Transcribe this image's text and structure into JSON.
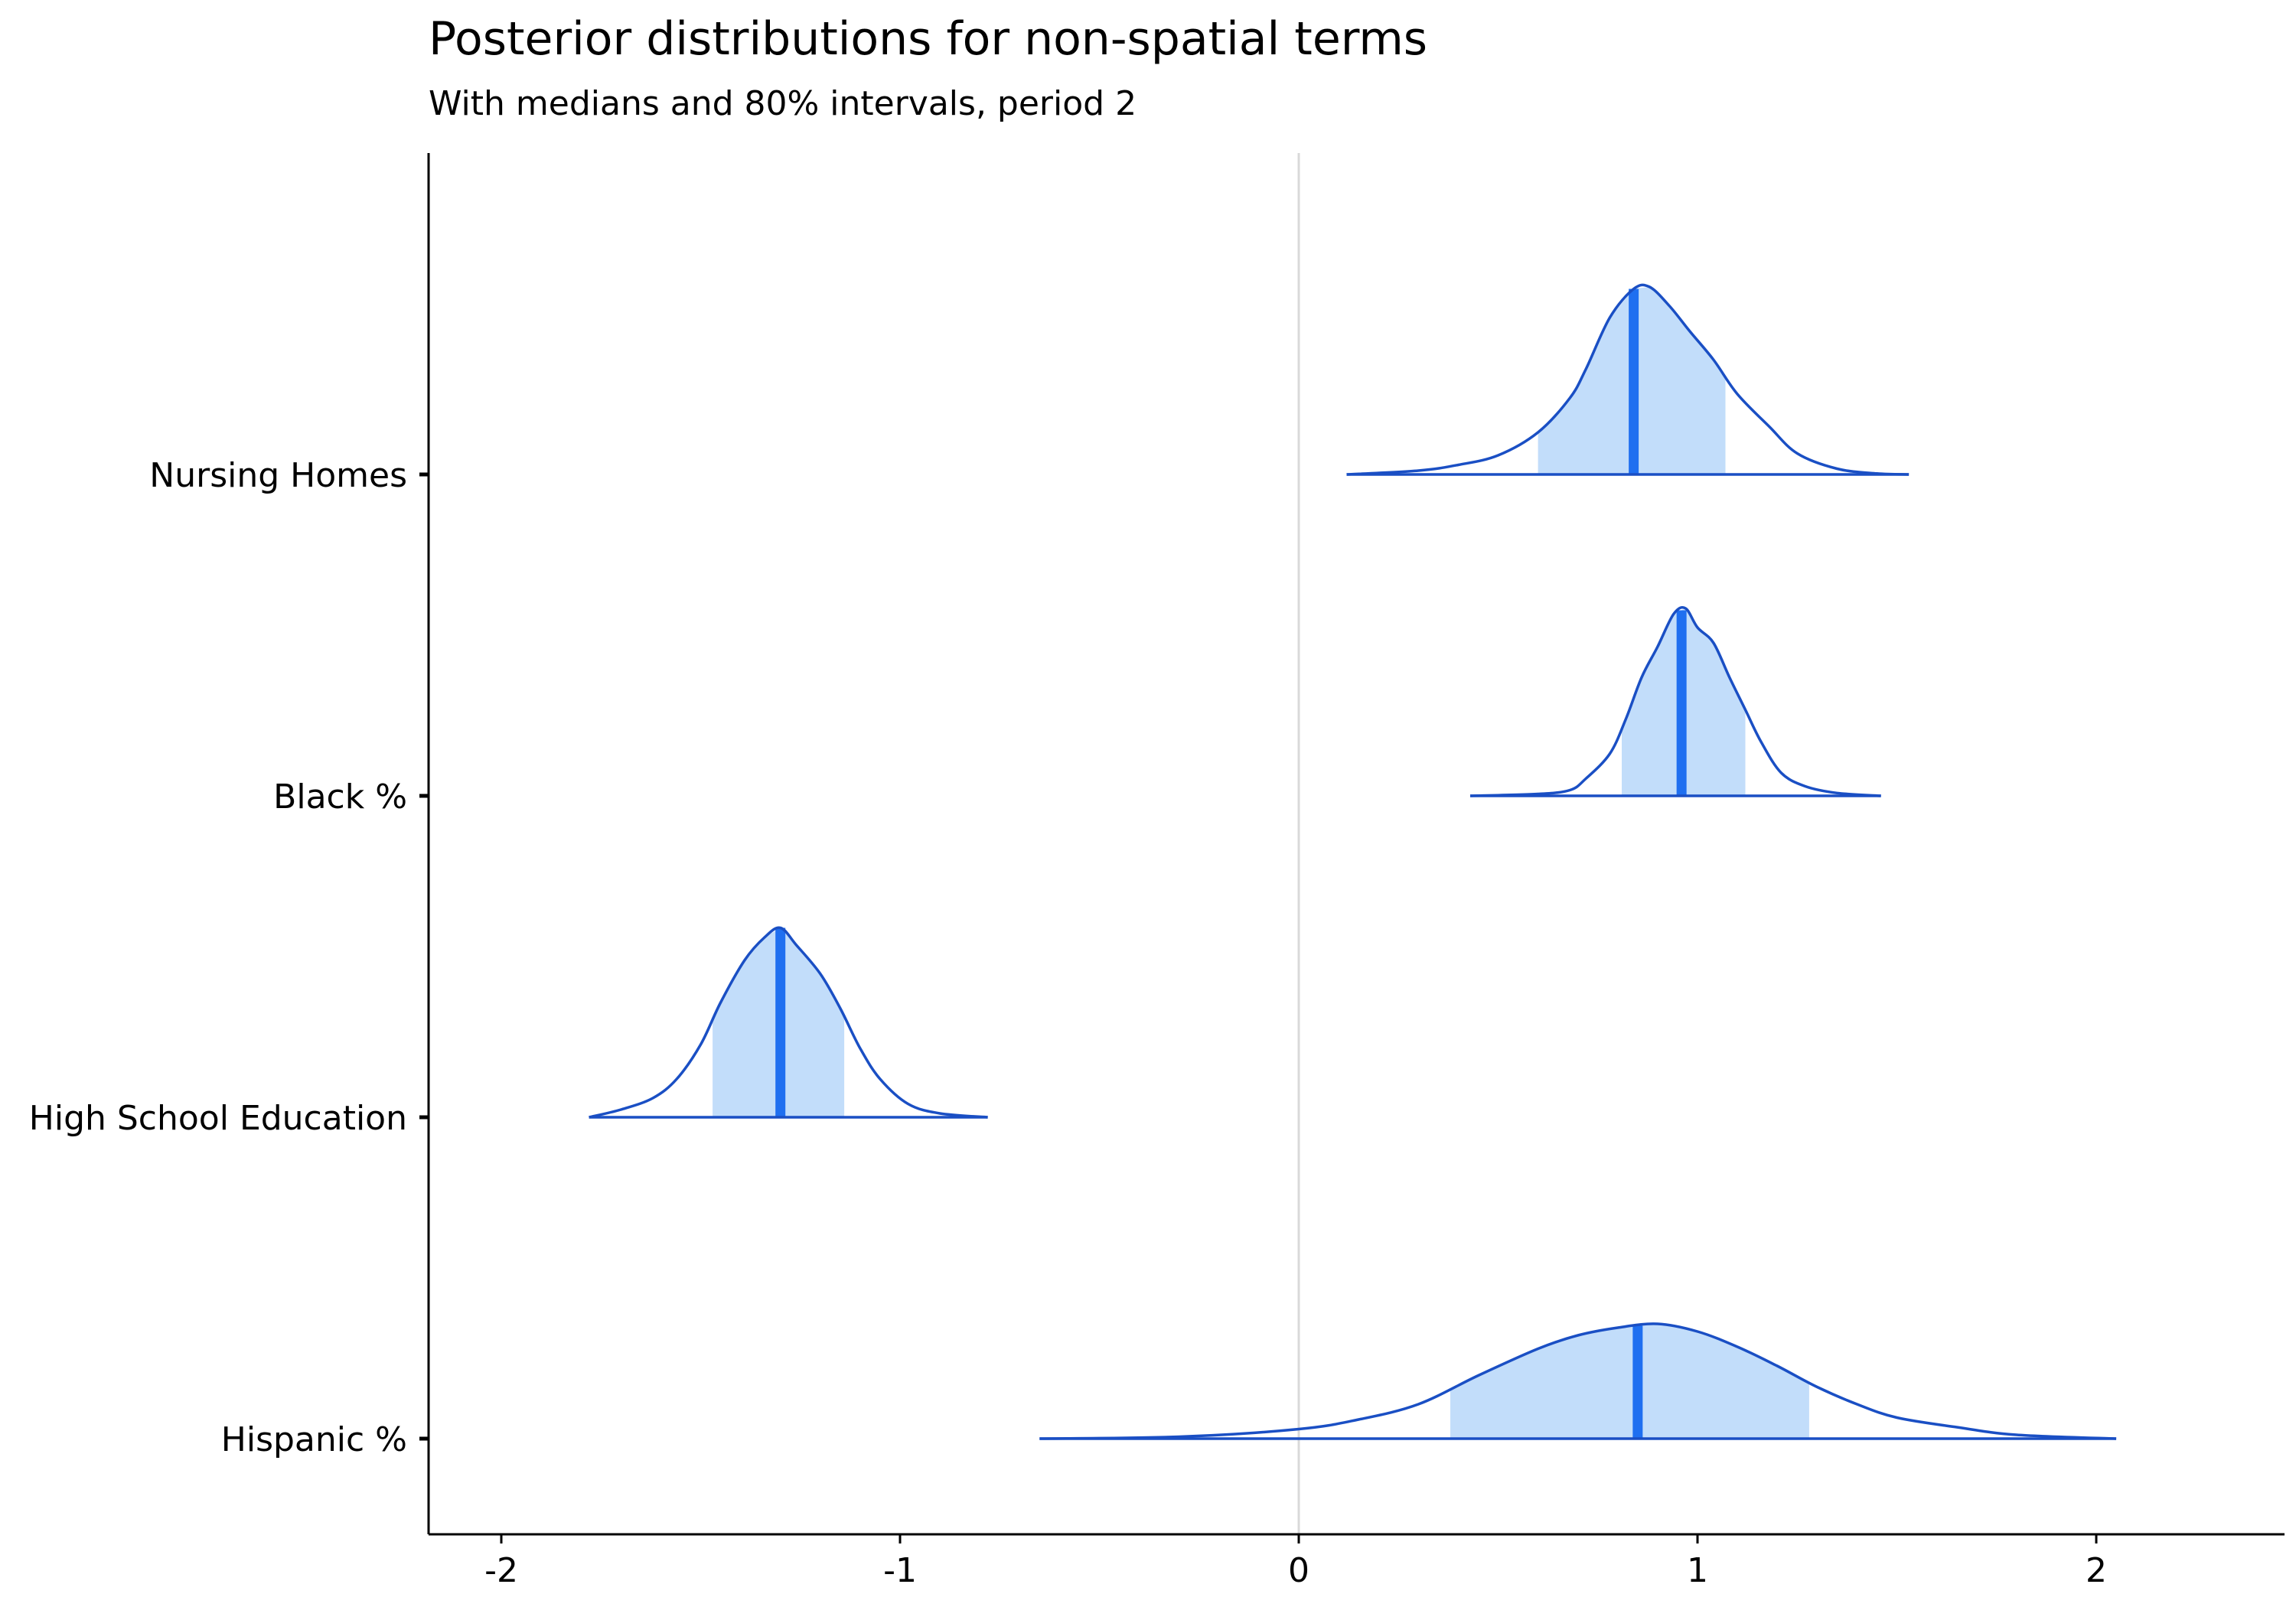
{
  "chart_data": {
    "type": "ridgeline-density",
    "title": "Posterior distributions for non-spatial terms",
    "subtitle": "With medians and 80% intervals, period 2",
    "xlim": [
      -2.2,
      2.5
    ],
    "x_ticks": [
      -2,
      -1,
      0,
      1,
      2
    ],
    "x_tick_labels": [
      "-2",
      "-1",
      "0",
      "1",
      "2"
    ],
    "reference_line_x": 0,
    "grid": false,
    "legend": "none",
    "colors": {
      "line": "#1a4fc4",
      "interval_fill": "#c2ddfa",
      "median": "#1f6ff0",
      "reference": "#d9d9d9",
      "axis": "#000000"
    },
    "series": [
      {
        "name": "Nursing Homes",
        "median": 0.84,
        "interval_80": [
          0.6,
          1.07
        ],
        "density": [
          [
            0.12,
            0.0
          ],
          [
            0.3,
            0.02
          ],
          [
            0.4,
            0.05
          ],
          [
            0.5,
            0.1
          ],
          [
            0.6,
            0.22
          ],
          [
            0.68,
            0.4
          ],
          [
            0.72,
            0.55
          ],
          [
            0.78,
            0.82
          ],
          [
            0.84,
            0.97
          ],
          [
            0.88,
            0.98
          ],
          [
            0.93,
            0.88
          ],
          [
            0.98,
            0.75
          ],
          [
            1.04,
            0.6
          ],
          [
            1.1,
            0.42
          ],
          [
            1.18,
            0.25
          ],
          [
            1.25,
            0.11
          ],
          [
            1.35,
            0.03
          ],
          [
            1.45,
            0.005
          ],
          [
            1.53,
            0.0
          ]
        ]
      },
      {
        "name": "Black %",
        "median": 0.96,
        "interval_80": [
          0.81,
          1.12
        ],
        "density": [
          [
            0.43,
            0.0
          ],
          [
            0.6,
            0.01
          ],
          [
            0.68,
            0.03
          ],
          [
            0.72,
            0.09
          ],
          [
            0.78,
            0.22
          ],
          [
            0.82,
            0.4
          ],
          [
            0.86,
            0.62
          ],
          [
            0.9,
            0.78
          ],
          [
            0.94,
            0.95
          ],
          [
            0.97,
            0.98
          ],
          [
            1.0,
            0.88
          ],
          [
            1.04,
            0.8
          ],
          [
            1.08,
            0.62
          ],
          [
            1.12,
            0.45
          ],
          [
            1.16,
            0.28
          ],
          [
            1.21,
            0.12
          ],
          [
            1.27,
            0.05
          ],
          [
            1.35,
            0.015
          ],
          [
            1.46,
            0.0
          ]
        ]
      },
      {
        "name": "High School Education",
        "median": -1.3,
        "interval_80": [
          -1.47,
          -1.14
        ],
        "density": [
          [
            -1.78,
            0.0
          ],
          [
            -1.7,
            0.04
          ],
          [
            -1.62,
            0.1
          ],
          [
            -1.56,
            0.2
          ],
          [
            -1.5,
            0.38
          ],
          [
            -1.45,
            0.6
          ],
          [
            -1.39,
            0.82
          ],
          [
            -1.34,
            0.94
          ],
          [
            -1.3,
            0.99
          ],
          [
            -1.26,
            0.9
          ],
          [
            -1.2,
            0.75
          ],
          [
            -1.15,
            0.57
          ],
          [
            -1.1,
            0.36
          ],
          [
            -1.05,
            0.2
          ],
          [
            -0.98,
            0.07
          ],
          [
            -0.9,
            0.02
          ],
          [
            -0.78,
            0.0
          ]
        ]
      },
      {
        "name": "Hispanic %",
        "median": 0.85,
        "interval_80": [
          0.38,
          1.28
        ],
        "density": [
          [
            -0.65,
            0.0
          ],
          [
            -0.3,
            0.01
          ],
          [
            0.0,
            0.05
          ],
          [
            0.15,
            0.1
          ],
          [
            0.3,
            0.18
          ],
          [
            0.45,
            0.33
          ],
          [
            0.6,
            0.47
          ],
          [
            0.7,
            0.54
          ],
          [
            0.8,
            0.58
          ],
          [
            0.9,
            0.6
          ],
          [
            1.0,
            0.56
          ],
          [
            1.1,
            0.48
          ],
          [
            1.2,
            0.38
          ],
          [
            1.3,
            0.27
          ],
          [
            1.4,
            0.18
          ],
          [
            1.5,
            0.11
          ],
          [
            1.65,
            0.06
          ],
          [
            1.8,
            0.02
          ],
          [
            2.05,
            0.0
          ]
        ]
      }
    ]
  }
}
